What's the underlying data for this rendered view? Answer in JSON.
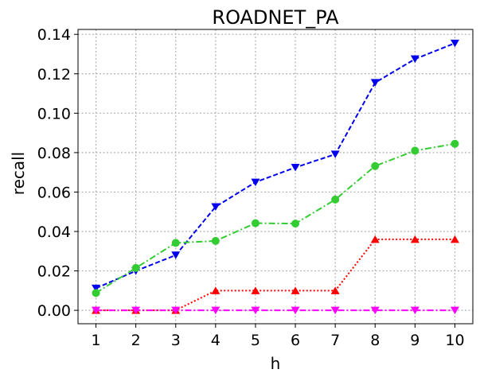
{
  "chart_data": {
    "type": "line",
    "title": "ROADNET_PA",
    "xlabel": "h",
    "ylabel": "recall",
    "x": [
      1,
      2,
      3,
      4,
      5,
      6,
      7,
      8,
      9,
      10
    ],
    "xticks": [
      "1",
      "2",
      "3",
      "4",
      "5",
      "6",
      "7",
      "8",
      "9",
      "10"
    ],
    "yticks": [
      "0.00",
      "0.02",
      "0.04",
      "0.06",
      "0.08",
      "0.10",
      "0.12",
      "0.14"
    ],
    "ylim": [
      -0.0068,
      0.1425
    ],
    "grid": true,
    "series": [
      {
        "color": "#0000ee",
        "line_style": "dashed",
        "marker": "triangle-down",
        "values": [
          0.0112,
          0.02,
          0.028,
          0.0525,
          0.065,
          0.0725,
          0.0792,
          0.1155,
          0.1275,
          0.1355
        ]
      },
      {
        "color": "#33cc33",
        "line_style": "dash-dot",
        "marker": "circle",
        "values": [
          0.0088,
          0.0215,
          0.0342,
          0.0352,
          0.0442,
          0.044,
          0.0562,
          0.0732,
          0.081,
          0.0845
        ]
      },
      {
        "color": "#ff0000",
        "line_style": "dotted",
        "marker": "triangle-up",
        "values": [
          0.0,
          0.0,
          0.0,
          0.01,
          0.01,
          0.01,
          0.01,
          0.036,
          0.036,
          0.036
        ]
      },
      {
        "color": "#ff00ff",
        "line_style": "dash-dot",
        "marker": "triangle-down",
        "values": [
          0.0,
          0.0,
          0.0,
          0.0,
          0.0,
          0.0,
          0.0,
          0.0,
          0.0,
          0.0
        ]
      }
    ]
  }
}
